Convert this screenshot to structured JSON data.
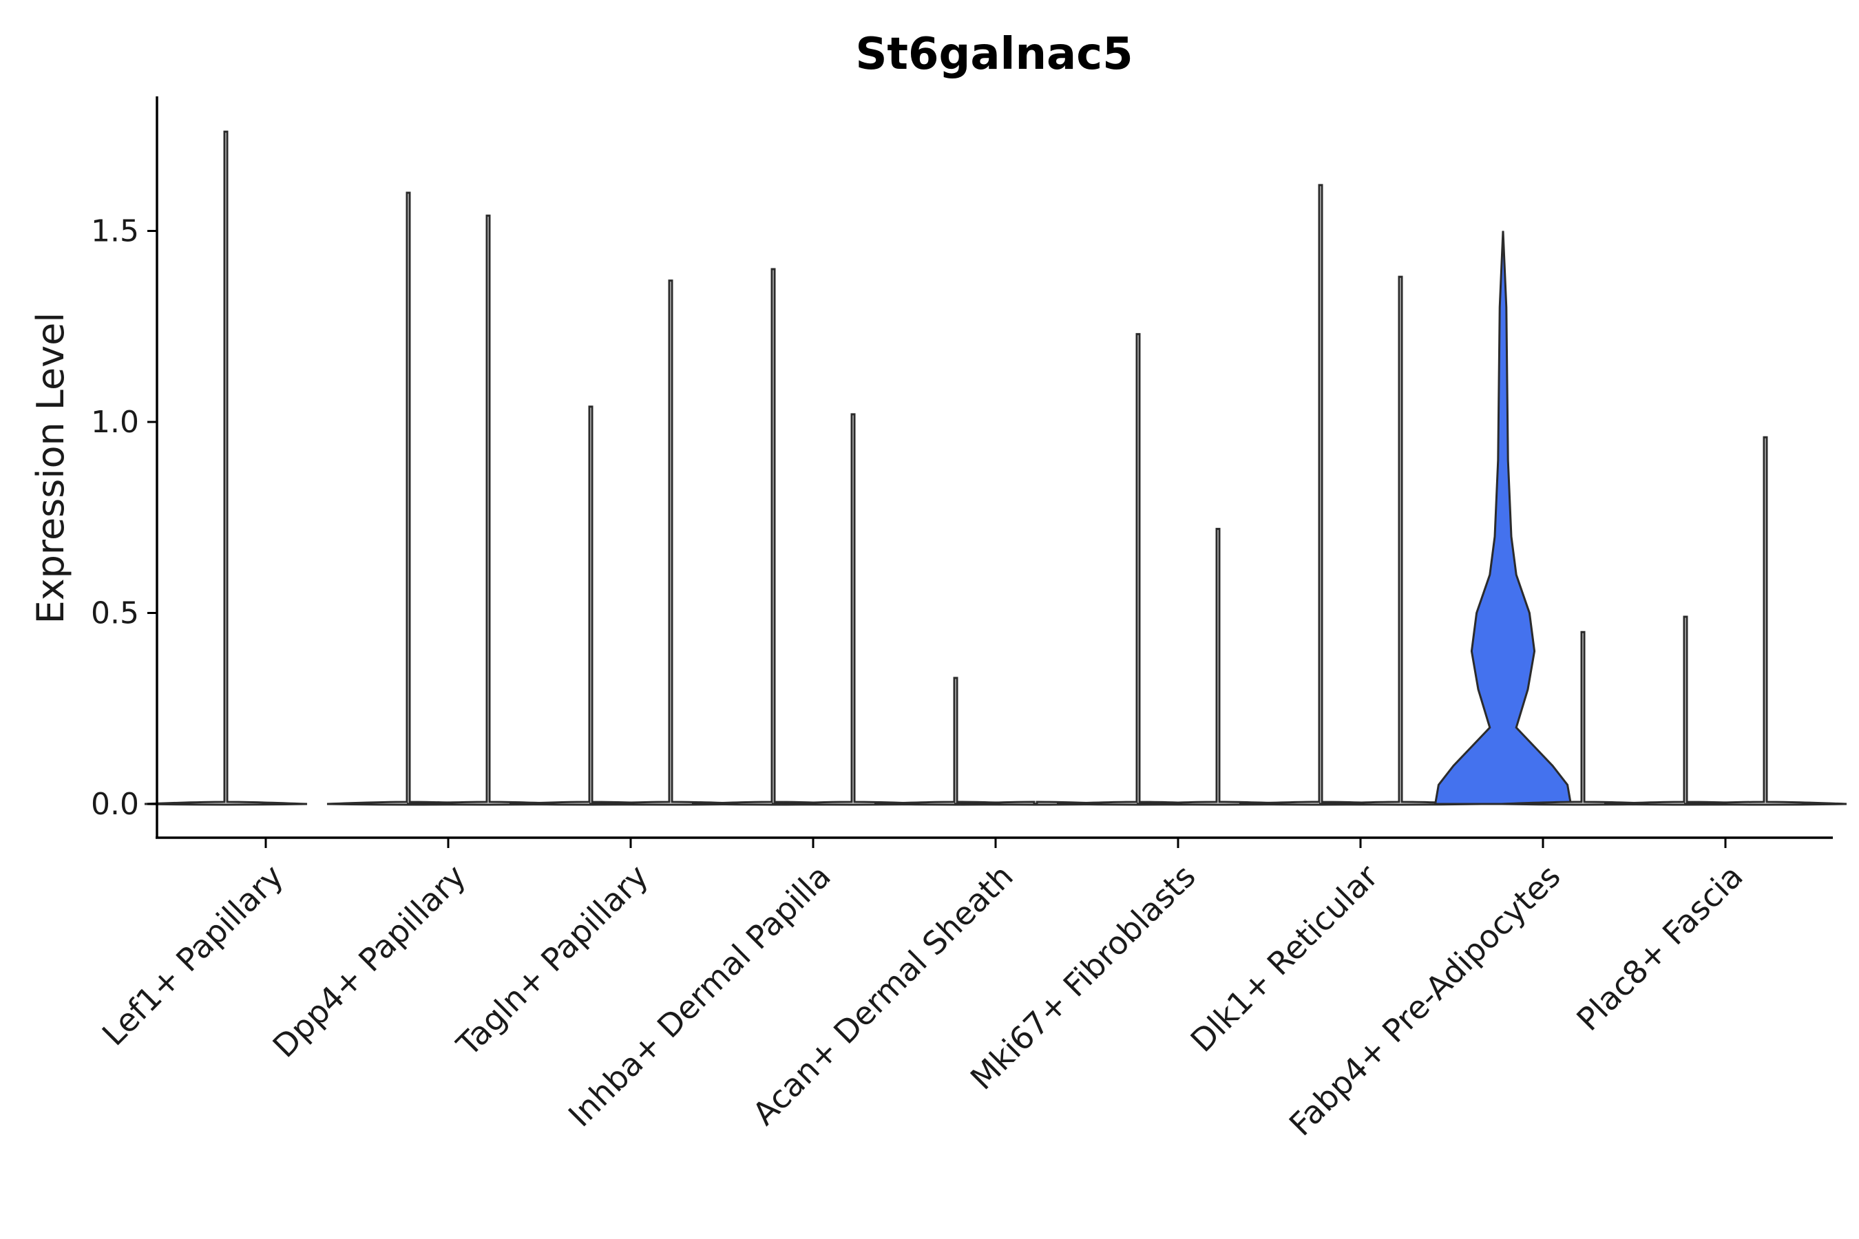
{
  "chart_data": {
    "type": "violin",
    "title": "St6galnac5",
    "xlabel": "",
    "ylabel": "Expression Level",
    "ylim": [
      -0.09,
      1.85
    ],
    "yticks": [
      0.0,
      0.5,
      1.0,
      1.5
    ],
    "ytick_labels": [
      "0.0",
      "0.5",
      "1.0",
      "1.5"
    ],
    "grid": false,
    "legend": "none",
    "categories": [
      "Lef1+ Papillary",
      "Dpp4+ Papillary",
      "Tagln+ Papillary",
      "Inhba+ Dermal Papilla",
      "Acan+ Dermal Sheath",
      "Mki67+ Fibroblasts",
      "Dlk1+ Reticular",
      "Fabp4+ Pre-Adipocytes",
      "Plac8+ Fascia"
    ],
    "violins": [
      {
        "category": "Lef1+ Papillary",
        "max": 1.76,
        "color": "#ffffff"
      },
      {
        "category": "Dpp4+ Papillary",
        "max": 1.6,
        "color": "#ffffff"
      },
      {
        "category": "Dpp4+ Papillary",
        "max": 1.54,
        "color": "#ffffff"
      },
      {
        "category": "Tagln+ Papillary",
        "max": 1.04,
        "color": "#ffffff"
      },
      {
        "category": "Tagln+ Papillary",
        "max": 1.37,
        "color": "#ffffff"
      },
      {
        "category": "Inhba+ Dermal Papilla",
        "max": 1.4,
        "color": "#ffffff"
      },
      {
        "category": "Inhba+ Dermal Papilla",
        "max": 1.02,
        "color": "#ffffff"
      },
      {
        "category": "Acan+ Dermal Sheath",
        "max": 0.33,
        "color": "#ffffff"
      },
      {
        "category": "Acan+ Dermal Sheath",
        "max": 0.0,
        "color": "#ffffff"
      },
      {
        "category": "Mki67+ Fibroblasts",
        "max": 1.23,
        "color": "#ffffff"
      },
      {
        "category": "Mki67+ Fibroblasts",
        "max": 0.72,
        "color": "#ffffff"
      },
      {
        "category": "Dlk1+ Reticular",
        "max": 1.62,
        "color": "#ffffff"
      },
      {
        "category": "Dlk1+ Reticular",
        "max": 1.38,
        "color": "#ffffff"
      },
      {
        "category": "Fabp4+ Pre-Adipocytes",
        "max": 1.5,
        "color": "#4472ee",
        "profile": [
          [
            0.0,
            0.82
          ],
          [
            0.05,
            0.78
          ],
          [
            0.1,
            0.6
          ],
          [
            0.15,
            0.38
          ],
          [
            0.2,
            0.16
          ],
          [
            0.3,
            0.3
          ],
          [
            0.4,
            0.38
          ],
          [
            0.5,
            0.32
          ],
          [
            0.6,
            0.16
          ],
          [
            0.7,
            0.1
          ],
          [
            0.9,
            0.06
          ],
          [
            1.1,
            0.05
          ],
          [
            1.3,
            0.04
          ],
          [
            1.5,
            0.0
          ]
        ]
      },
      {
        "category": "Fabp4+ Pre-Adipocytes",
        "max": 0.45,
        "color": "#ffffff"
      },
      {
        "category": "Plac8+ Fascia",
        "max": 0.49,
        "color": "#ffffff"
      },
      {
        "category": "Plac8+ Fascia",
        "max": 0.96,
        "color": "#ffffff"
      }
    ]
  }
}
